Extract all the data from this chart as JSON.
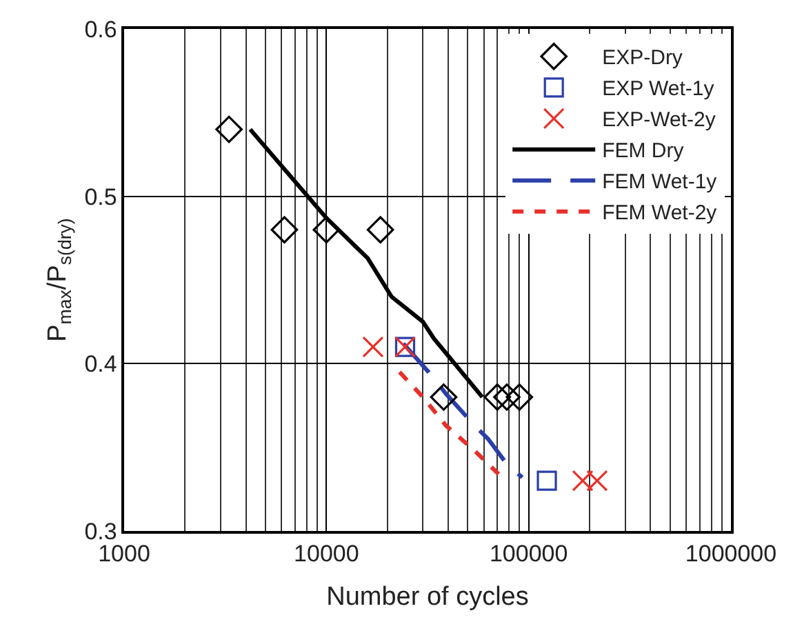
{
  "chart_data": {
    "type": "scatter",
    "xlabel": "Number of cycles",
    "ylabel": "P$_{max}$/P$_{s(dry)}$",
    "log": "x",
    "grid": true,
    "legend": "top right",
    "xlim": [
      1000,
      1000000
    ],
    "xticks": [
      1000,
      10000,
      100000,
      1000000
    ],
    "ylim": [
      0.3,
      0.6
    ],
    "yticks": [
      0.3,
      0.4,
      0.5,
      0.6
    ],
    "series": [
      {
        "name": "EXP-Dry",
        "marker": "diamond",
        "color": "#000000",
        "x": [
          3300,
          6200,
          10000,
          18500,
          38000,
          70000,
          78000,
          90000
        ],
        "values": [
          0.54,
          0.48,
          0.48,
          0.48,
          0.38,
          0.38,
          0.38,
          0.38
        ]
      },
      {
        "name": "EXP Wet-1y",
        "marker": "square",
        "color": "#2b3fa8",
        "x": [
          24500,
          123000
        ],
        "values": [
          0.41,
          0.33
        ]
      },
      {
        "name": "EXP-Wet-2y",
        "marker": "cross",
        "color": "#e8302a",
        "x": [
          17000,
          24500,
          185000,
          218000
        ],
        "values": [
          0.41,
          0.41,
          0.33,
          0.33
        ]
      },
      {
        "name": "FEM Dry",
        "type": "line",
        "line_style": "solid",
        "color": "#000000",
        "x": [
          4200,
          10000,
          16000,
          21000,
          30000,
          34000,
          59000
        ],
        "values": [
          0.54,
          0.487,
          0.463,
          0.44,
          0.425,
          0.415,
          0.38
        ]
      },
      {
        "name": "FEM Wet-1y",
        "type": "line",
        "line_style": "dashed",
        "color": "#2b3fa8",
        "x": [
          24000,
          32000,
          39000,
          54000,
          63000,
          78000,
          93000
        ],
        "values": [
          0.412,
          0.395,
          0.382,
          0.363,
          0.355,
          0.34,
          0.332
        ]
      },
      {
        "name": "FEM Wet-2y",
        "type": "line",
        "line_style": "dotted",
        "color": "#e8302a",
        "x": [
          23000,
          30000,
          39000,
          54000,
          71000
        ],
        "values": [
          0.395,
          0.38,
          0.363,
          0.348,
          0.334
        ]
      }
    ]
  }
}
